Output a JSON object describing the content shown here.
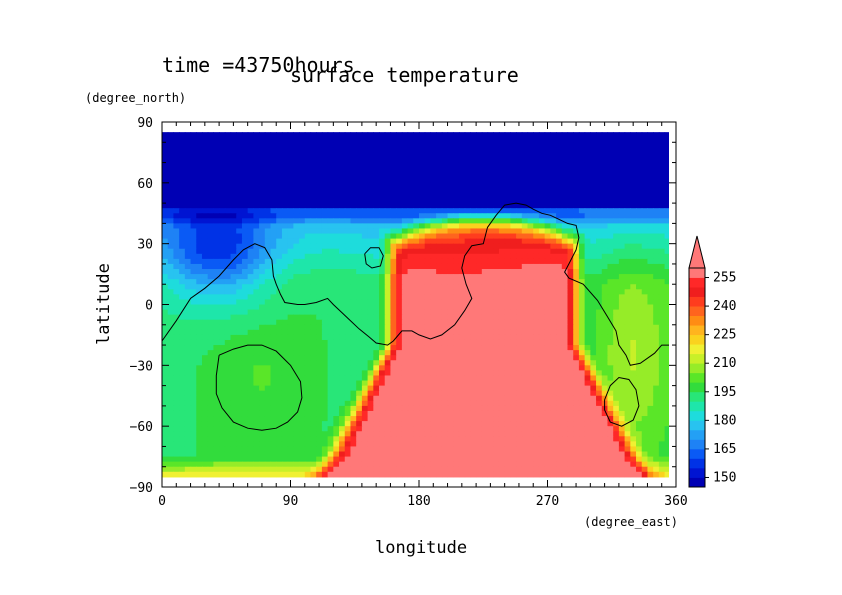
{
  "header": {
    "time_label": "time =43750hours",
    "title": "surface temperature"
  },
  "colors": {
    "background": "#ffffff",
    "levels": [
      {
        "max": 150,
        "color": "#0000b4"
      },
      {
        "max": 155,
        "color": "#0014d2"
      },
      {
        "max": 160,
        "color": "#0032e6"
      },
      {
        "max": 165,
        "color": "#0a5af5"
      },
      {
        "max": 170,
        "color": "#1e82f5"
      },
      {
        "max": 175,
        "color": "#23a0f5"
      },
      {
        "max": 180,
        "color": "#28c3f0"
      },
      {
        "max": 185,
        "color": "#1edcdc"
      },
      {
        "max": 190,
        "color": "#1ee6aa"
      },
      {
        "max": 195,
        "color": "#28e678"
      },
      {
        "max": 200,
        "color": "#32dc3c"
      },
      {
        "max": 205,
        "color": "#5ae628"
      },
      {
        "max": 210,
        "color": "#96ec28"
      },
      {
        "max": 215,
        "color": "#c8f028"
      },
      {
        "max": 220,
        "color": "#f0f032"
      },
      {
        "max": 225,
        "color": "#fad21e"
      },
      {
        "max": 230,
        "color": "#ffb41e"
      },
      {
        "max": 235,
        "color": "#ff8c14"
      },
      {
        "max": 240,
        "color": "#ff641e"
      },
      {
        "max": 245,
        "color": "#ff3c1e"
      },
      {
        "max": 250,
        "color": "#f01e1e"
      },
      {
        "max": 255,
        "color": "#ff2828"
      },
      {
        "max": 999,
        "color": "#ff7878"
      }
    ]
  },
  "chart_data": {
    "type": "heatmap",
    "title": "surface temperature",
    "subtitle": "time =43750hours",
    "xlabel": "longitude",
    "ylabel": "latitude",
    "x_units": "(degree_east)",
    "y_units": "(degree_north)",
    "xlim": [
      0,
      360
    ],
    "ylim": [
      -90,
      90
    ],
    "data_lat_range": [
      -85,
      85
    ],
    "x_ticks": [
      0,
      90,
      180,
      270,
      360
    ],
    "y_ticks": [
      90,
      60,
      30,
      0,
      -30,
      -60,
      -90
    ],
    "colorbar": {
      "labels": [
        255,
        240,
        225,
        210,
        195,
        180,
        165,
        150
      ],
      "interval": 5,
      "min_label": 150,
      "max_label": 255,
      "extends_max": true
    },
    "field_model": {
      "description": "approximate surface temperature (K) by longitude/latitude",
      "polar_cap_north_lat": 48,
      "hot_region": {
        "lon_center": 225,
        "lat_center": -30,
        "lon_halfwidth": 65,
        "lat_top": 30,
        "lat_bottom": -88,
        "peak": 265
      },
      "cold_pool": {
        "lon": 40,
        "lat": 25,
        "value": 165
      },
      "cool_spot": {
        "lon": 70,
        "lat": -35,
        "value": 205
      }
    },
    "contours": [
      {
        "name": "coastline-main",
        "points": [
          [
            0,
            -18
          ],
          [
            10,
            -8
          ],
          [
            20,
            3
          ],
          [
            30,
            8
          ],
          [
            40,
            14
          ],
          [
            50,
            22
          ],
          [
            57,
            27
          ],
          [
            65,
            30
          ],
          [
            72,
            28
          ],
          [
            77,
            22
          ],
          [
            78,
            14
          ],
          [
            80,
            10
          ],
          [
            83,
            5
          ],
          [
            86,
            1
          ],
          [
            95,
            0
          ],
          [
            100,
            0
          ],
          [
            108,
            1
          ],
          [
            116,
            3
          ],
          [
            120,
            0
          ],
          [
            126,
            -4
          ],
          [
            132,
            -8
          ],
          [
            138,
            -12
          ],
          [
            145,
            -16
          ],
          [
            150,
            -19
          ],
          [
            158,
            -20
          ],
          [
            162,
            -18
          ],
          [
            168,
            -13
          ],
          [
            175,
            -13
          ],
          [
            180,
            -15
          ],
          [
            188,
            -17
          ],
          [
            196,
            -15
          ],
          [
            205,
            -10
          ],
          [
            212,
            -3
          ],
          [
            217,
            3
          ],
          [
            213,
            10
          ],
          [
            210,
            18
          ],
          [
            212,
            24
          ],
          [
            217,
            29
          ],
          [
            225,
            30
          ],
          [
            228,
            38
          ],
          [
            234,
            44
          ],
          [
            240,
            49
          ],
          [
            248,
            50
          ],
          [
            255,
            49
          ],
          [
            260,
            47
          ],
          [
            266,
            45
          ],
          [
            272,
            44
          ],
          [
            278,
            42
          ],
          [
            284,
            40
          ],
          [
            290,
            39
          ],
          [
            292,
            33
          ],
          [
            290,
            27
          ],
          [
            285,
            20
          ],
          [
            282,
            16
          ],
          [
            285,
            13
          ],
          [
            295,
            10
          ],
          [
            305,
            2
          ],
          [
            312,
            -6
          ],
          [
            318,
            -13
          ],
          [
            320,
            -20
          ],
          [
            325,
            -25
          ],
          [
            328,
            -30
          ],
          [
            335,
            -29
          ],
          [
            345,
            -24
          ],
          [
            350,
            -20
          ],
          [
            360,
            -20
          ]
        ]
      },
      {
        "name": "contour-west-south",
        "points": [
          [
            40,
            -25
          ],
          [
            50,
            -22
          ],
          [
            60,
            -20
          ],
          [
            70,
            -20
          ],
          [
            80,
            -23
          ],
          [
            90,
            -30
          ],
          [
            97,
            -38
          ],
          [
            98,
            -46
          ],
          [
            95,
            -53
          ],
          [
            88,
            -58
          ],
          [
            80,
            -61
          ],
          [
            70,
            -62
          ],
          [
            60,
            -61
          ],
          [
            50,
            -58
          ],
          [
            42,
            -51
          ],
          [
            38,
            -44
          ],
          [
            38,
            -35
          ],
          [
            40,
            -25
          ]
        ]
      },
      {
        "name": "contour-island",
        "points": [
          [
            142,
            25
          ],
          [
            146,
            28
          ],
          [
            152,
            28
          ],
          [
            155,
            24
          ],
          [
            153,
            19
          ],
          [
            147,
            18
          ],
          [
            143,
            20
          ],
          [
            142,
            25
          ]
        ]
      },
      {
        "name": "contour-east-south",
        "points": [
          [
            310,
            -47
          ],
          [
            314,
            -40
          ],
          [
            320,
            -36
          ],
          [
            327,
            -37
          ],
          [
            332,
            -42
          ],
          [
            334,
            -50
          ],
          [
            330,
            -57
          ],
          [
            322,
            -60
          ],
          [
            314,
            -58
          ],
          [
            310,
            -52
          ],
          [
            310,
            -47
          ]
        ]
      }
    ]
  }
}
